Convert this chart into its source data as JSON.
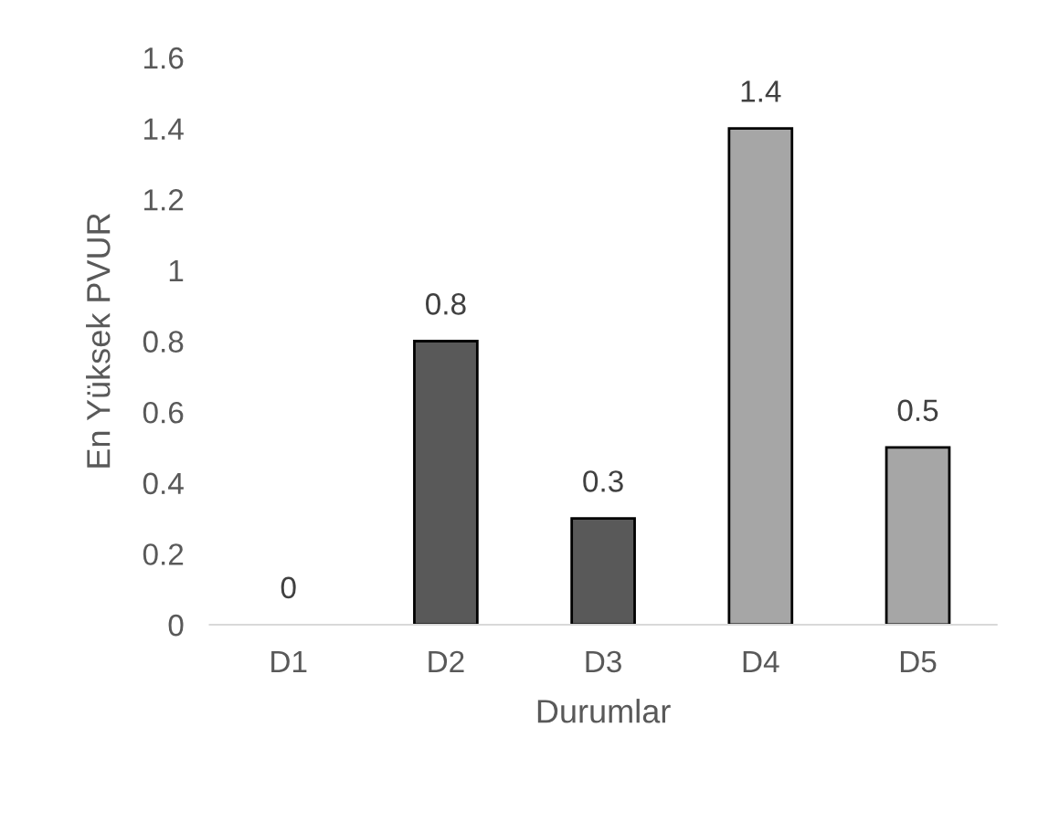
{
  "chart_data": {
    "type": "bar",
    "xlabel": "Durumlar",
    "ylabel": "En Yüksek PVUR",
    "categories": [
      "D1",
      "D2",
      "D3",
      "D4",
      "D5"
    ],
    "values": [
      0,
      0.8,
      0.3,
      1.4,
      0.5
    ],
    "colors": [
      "#595959",
      "#595959",
      "#595959",
      "#a6a6a6",
      "#a6a6a6"
    ],
    "ylim": [
      0,
      1.6
    ],
    "yticks": [
      0,
      0.2,
      0.4,
      0.6,
      0.8,
      1,
      1.2,
      1.4,
      1.6
    ],
    "data_labels": true,
    "grid": false,
    "legend": false
  }
}
